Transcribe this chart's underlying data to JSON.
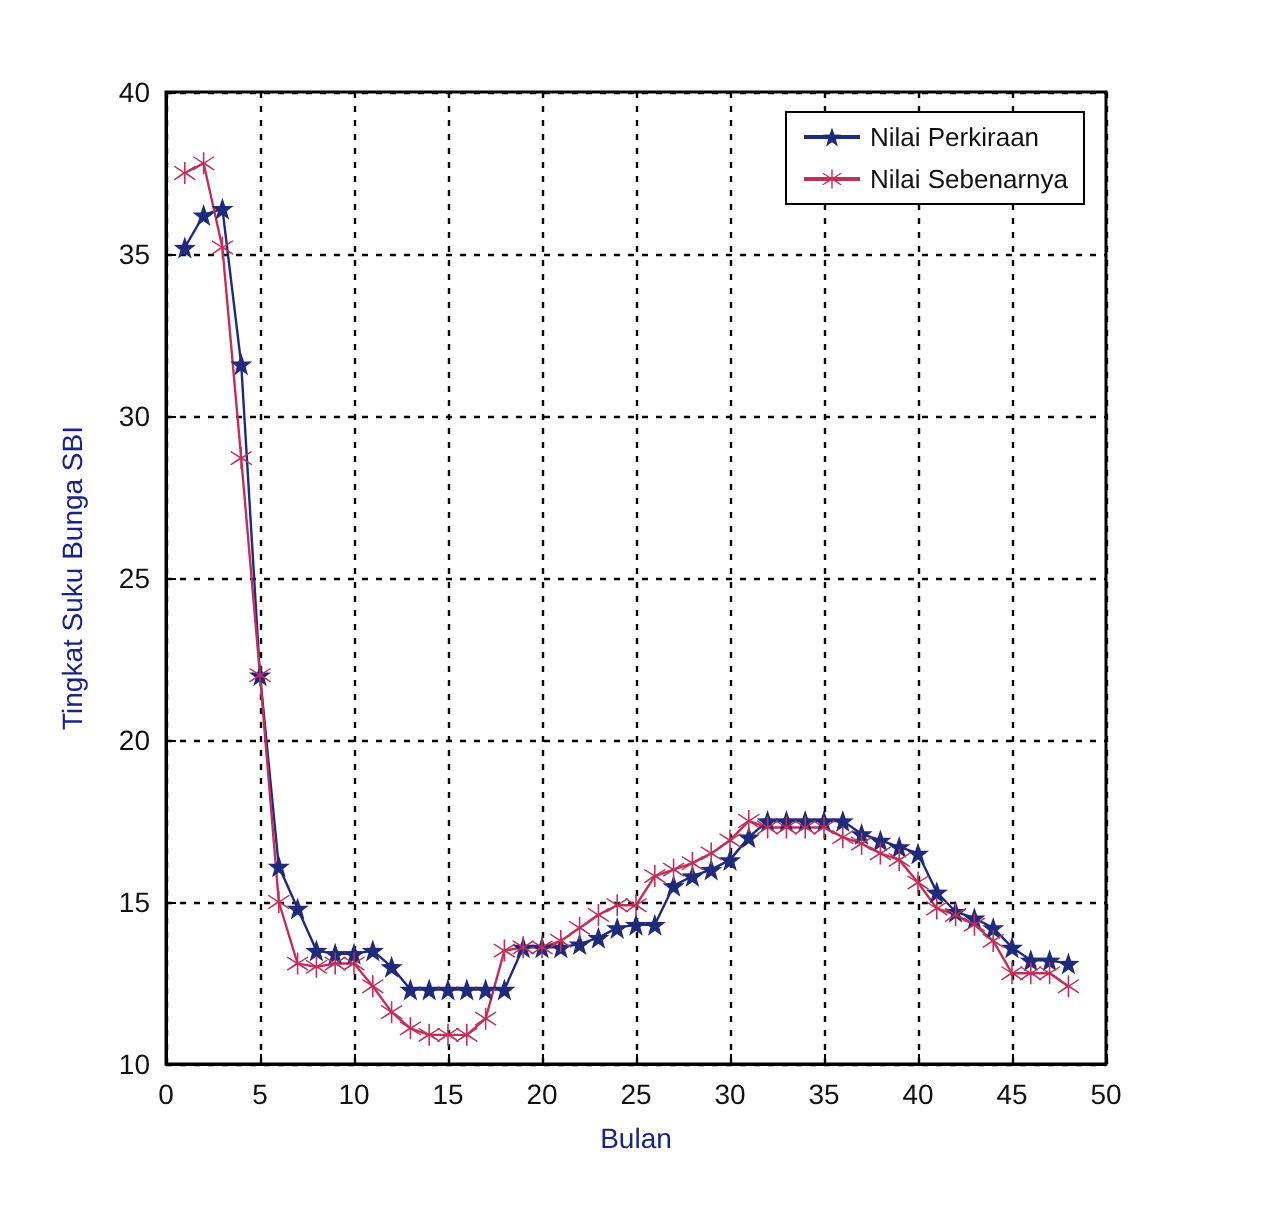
{
  "chart_data": {
    "type": "line",
    "xlabel": "Bulan",
    "ylabel": "Tingkat Suku Bunga SBI",
    "x": [
      1,
      2,
      3,
      4,
      5,
      6,
      7,
      8,
      9,
      10,
      11,
      12,
      13,
      14,
      15,
      16,
      17,
      18,
      19,
      20,
      21,
      22,
      23,
      24,
      25,
      26,
      27,
      28,
      29,
      30,
      31,
      32,
      33,
      34,
      35,
      36,
      37,
      38,
      39,
      40,
      41,
      42,
      43,
      44,
      45,
      46,
      47,
      48
    ],
    "series": [
      {
        "name": "Nilai Perkiraan",
        "color": "#1f2a7a",
        "marker": "star",
        "values": [
          35.2,
          36.2,
          36.4,
          31.6,
          22.0,
          16.1,
          14.8,
          13.5,
          13.4,
          13.4,
          13.5,
          13.0,
          12.3,
          12.3,
          12.3,
          12.3,
          12.3,
          12.3,
          13.6,
          13.6,
          13.6,
          13.7,
          13.9,
          14.2,
          14.3,
          14.3,
          15.5,
          15.8,
          16.0,
          16.3,
          17.0,
          17.5,
          17.5,
          17.5,
          17.5,
          17.5,
          17.1,
          16.9,
          16.7,
          16.5,
          15.3,
          14.7,
          14.5,
          14.2,
          13.6,
          13.2,
          13.2,
          13.1
        ]
      },
      {
        "name": "Nilai Sebenarnya",
        "color": "#c0305a",
        "marker": "cross",
        "values": [
          37.5,
          37.8,
          35.2,
          28.7,
          22.0,
          15.0,
          13.1,
          13.0,
          13.1,
          13.1,
          12.4,
          11.6,
          11.1,
          10.9,
          10.9,
          10.9,
          11.4,
          13.5,
          13.6,
          13.6,
          13.8,
          14.2,
          14.6,
          14.9,
          14.9,
          15.8,
          16.0,
          16.2,
          16.5,
          16.9,
          17.5,
          17.3,
          17.3,
          17.3,
          17.3,
          17.0,
          16.8,
          16.5,
          16.3,
          15.6,
          14.8,
          14.6,
          14.3,
          13.8,
          12.8,
          12.8,
          12.8,
          12.4
        ]
      }
    ],
    "xlim": [
      0,
      50
    ],
    "xticks": [
      0,
      5,
      10,
      15,
      20,
      25,
      30,
      35,
      40,
      45,
      50
    ],
    "ylim": [
      10,
      40
    ],
    "yticks": [
      10,
      15,
      20,
      25,
      30,
      35,
      40
    ],
    "grid": true,
    "legend": "top right",
    "line_style": "solid"
  }
}
